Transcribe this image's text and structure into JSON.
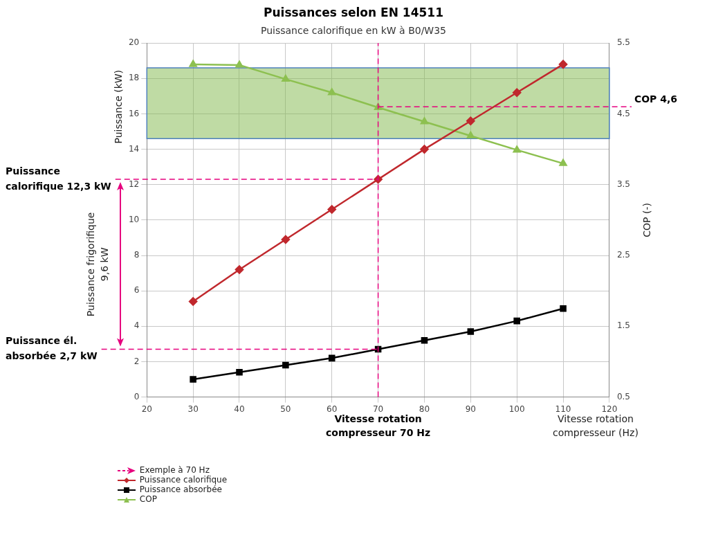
{
  "chart_data": {
    "type": "line",
    "title": "Puissances selon EN 14511",
    "subtitle": "Puissance calorifique en kW à B0/W35",
    "xlabel": "Vitesse rotation compresseur (Hz)",
    "ylabel": "Puissance (kW)",
    "y2label": "COP (-)",
    "x": [
      30,
      40,
      50,
      60,
      70,
      80,
      90,
      100,
      110
    ],
    "series": [
      {
        "name": "Puissance calorifique",
        "color": "#c0282d",
        "marker": "diamond",
        "values": [
          5.4,
          7.2,
          8.9,
          10.6,
          12.3,
          14.0,
          15.6,
          17.2,
          18.8
        ]
      },
      {
        "name": "Puissance absorbée",
        "color": "#000000",
        "marker": "square",
        "values": [
          1.0,
          1.4,
          1.8,
          2.2,
          2.7,
          3.2,
          3.7,
          4.3,
          5.0
        ]
      },
      {
        "name": "COP",
        "color": "#8dc050",
        "marker": "triangle",
        "axis": "y2",
        "values": [
          5.2,
          5.19,
          4.99,
          4.8,
          4.59,
          4.39,
          4.19,
          3.99,
          3.8
        ]
      }
    ],
    "xlim": [
      20,
      120
    ],
    "xticks": [
      20,
      30,
      40,
      50,
      60,
      70,
      80,
      90,
      100,
      110,
      120
    ],
    "ylim": [
      0,
      20
    ],
    "yticks": [
      0,
      2,
      4,
      6,
      8,
      10,
      12,
      14,
      16,
      18,
      20
    ],
    "y2lim": [
      0.5,
      5.5
    ],
    "y2ticks": [
      0.5,
      1.5,
      2.5,
      3.5,
      4.5,
      5.5
    ],
    "ref_lines": [
      {
        "axis": "x",
        "value": 70,
        "label": "Vitesse rotation compresseur 70 Hz",
        "color": "#e6007e",
        "line_style": "dashed"
      },
      {
        "axis": "y",
        "value": 12.3,
        "label": "Puissance calorifique 12,3 kW",
        "color": "#e6007e",
        "line_style": "dashed"
      },
      {
        "axis": "y",
        "value": 2.7,
        "label": "Puissance él. absorbée 2,7 kW",
        "color": "#e6007e",
        "line_style": "dashed"
      },
      {
        "axis": "y2",
        "value": 4.6,
        "label": "COP 4,6",
        "color": "#e6007e",
        "line_style": "dashed"
      }
    ],
    "bands": [
      {
        "axis": "y",
        "from": 14.6,
        "to": 18.6,
        "color": "#7fb84a"
      }
    ],
    "annotations": [
      "Puissance frigorifique 9,6 kW",
      "Exemple à 70 Hz"
    ],
    "grid": true,
    "legend": "bottom left",
    "line_style": "solid"
  }
}
